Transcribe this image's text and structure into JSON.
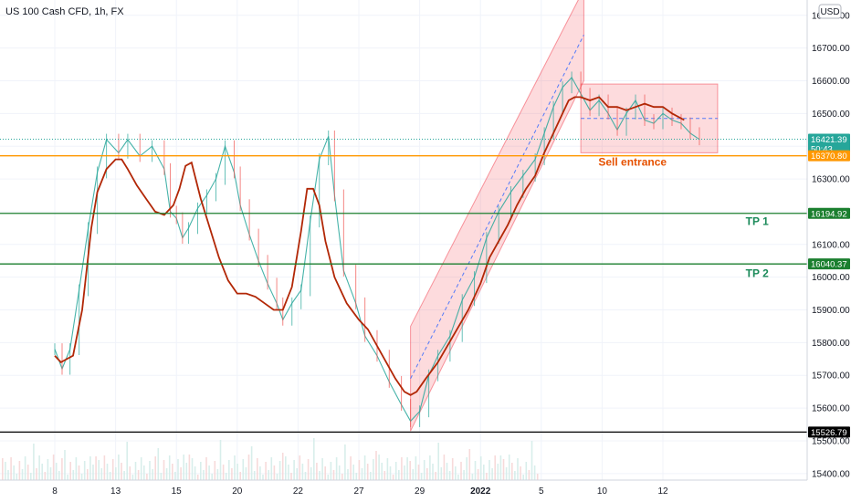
{
  "chart_data": {
    "type": "line",
    "title": "US 100 Cash CFD, 1h, FX",
    "currency": "USD",
    "x_ticks": [
      "8",
      "13",
      "15",
      "20",
      "22",
      "27",
      "29",
      "2022",
      "5",
      "10",
      "12"
    ],
    "y_ticks": [
      15400,
      15500,
      15600,
      15700,
      15800,
      15900,
      16000,
      16100,
      16200,
      16300,
      16400,
      16500,
      16600,
      16700,
      16800
    ],
    "ylim": [
      15380,
      16830
    ],
    "series": [
      {
        "kind": "price",
        "color": "#26a69a",
        "points": [
          [
            0.0,
            15780
          ],
          [
            0.12,
            15720
          ],
          [
            0.25,
            15780
          ],
          [
            0.4,
            15960
          ],
          [
            0.55,
            16150
          ],
          [
            0.7,
            16320
          ],
          [
            0.85,
            16420
          ],
          [
            1.05,
            16380
          ],
          [
            1.2,
            16420
          ],
          [
            1.4,
            16370
          ],
          [
            1.6,
            16400
          ],
          [
            1.8,
            16330
          ],
          [
            1.9,
            16200
          ],
          [
            2.0,
            16180
          ],
          [
            2.1,
            16120
          ],
          [
            2.2,
            16150
          ],
          [
            2.35,
            16210
          ],
          [
            2.5,
            16250
          ],
          [
            2.65,
            16300
          ],
          [
            2.8,
            16400
          ],
          [
            2.95,
            16320
          ],
          [
            3.05,
            16220
          ],
          [
            3.2,
            16130
          ],
          [
            3.35,
            16050
          ],
          [
            3.5,
            15980
          ],
          [
            3.65,
            15920
          ],
          [
            3.75,
            15870
          ],
          [
            3.9,
            15920
          ],
          [
            4.05,
            15960
          ],
          [
            4.2,
            16170
          ],
          [
            4.35,
            16360
          ],
          [
            4.5,
            16430
          ],
          [
            4.6,
            16250
          ],
          [
            4.75,
            16020
          ],
          [
            4.95,
            15920
          ],
          [
            5.1,
            15820
          ],
          [
            5.3,
            15760
          ],
          [
            5.5,
            15680
          ],
          [
            5.7,
            15610
          ],
          [
            5.85,
            15560
          ],
          [
            6.0,
            15590
          ],
          [
            6.15,
            15700
          ],
          [
            6.3,
            15760
          ],
          [
            6.5,
            15820
          ],
          [
            6.7,
            15930
          ],
          [
            6.9,
            16000
          ],
          [
            7.1,
            16120
          ],
          [
            7.3,
            16200
          ],
          [
            7.5,
            16260
          ],
          [
            7.7,
            16310
          ],
          [
            7.9,
            16360
          ],
          [
            8.05,
            16440
          ],
          [
            8.2,
            16520
          ],
          [
            8.35,
            16580
          ],
          [
            8.5,
            16610
          ],
          [
            8.65,
            16560
          ],
          [
            8.8,
            16510
          ],
          [
            8.95,
            16540
          ],
          [
            9.1,
            16500
          ],
          [
            9.25,
            16450
          ],
          [
            9.4,
            16500
          ],
          [
            9.55,
            16540
          ],
          [
            9.7,
            16480
          ],
          [
            9.85,
            16470
          ],
          [
            10.0,
            16500
          ],
          [
            10.15,
            16480
          ],
          [
            10.3,
            16470
          ],
          [
            10.45,
            16440
          ],
          [
            10.6,
            16421
          ]
        ]
      },
      {
        "kind": "moving-average",
        "color": "#b22706",
        "points": [
          [
            0.0,
            15760
          ],
          [
            0.1,
            15740
          ],
          [
            0.3,
            15760
          ],
          [
            0.45,
            15900
          ],
          [
            0.6,
            16150
          ],
          [
            0.7,
            16260
          ],
          [
            0.85,
            16330
          ],
          [
            1.0,
            16360
          ],
          [
            1.1,
            16360
          ],
          [
            1.2,
            16330
          ],
          [
            1.35,
            16280
          ],
          [
            1.5,
            16240
          ],
          [
            1.65,
            16200
          ],
          [
            1.8,
            16190
          ],
          [
            1.95,
            16220
          ],
          [
            2.05,
            16270
          ],
          [
            2.15,
            16340
          ],
          [
            2.25,
            16350
          ],
          [
            2.4,
            16240
          ],
          [
            2.55,
            16150
          ],
          [
            2.7,
            16060
          ],
          [
            2.85,
            15990
          ],
          [
            3.0,
            15950
          ],
          [
            3.15,
            15950
          ],
          [
            3.3,
            15940
          ],
          [
            3.45,
            15920
          ],
          [
            3.6,
            15900
          ],
          [
            3.75,
            15900
          ],
          [
            3.9,
            15970
          ],
          [
            4.05,
            16140
          ],
          [
            4.15,
            16270
          ],
          [
            4.25,
            16270
          ],
          [
            4.35,
            16220
          ],
          [
            4.45,
            16110
          ],
          [
            4.6,
            16000
          ],
          [
            4.8,
            15920
          ],
          [
            5.0,
            15870
          ],
          [
            5.15,
            15840
          ],
          [
            5.3,
            15790
          ],
          [
            5.45,
            15740
          ],
          [
            5.6,
            15690
          ],
          [
            5.75,
            15650
          ],
          [
            5.85,
            15640
          ],
          [
            5.95,
            15650
          ],
          [
            6.1,
            15690
          ],
          [
            6.3,
            15740
          ],
          [
            6.55,
            15820
          ],
          [
            6.8,
            15900
          ],
          [
            7.0,
            15980
          ],
          [
            7.15,
            16060
          ],
          [
            7.3,
            16110
          ],
          [
            7.45,
            16160
          ],
          [
            7.6,
            16220
          ],
          [
            7.75,
            16270
          ],
          [
            7.9,
            16310
          ],
          [
            8.05,
            16380
          ],
          [
            8.2,
            16440
          ],
          [
            8.35,
            16500
          ],
          [
            8.45,
            16540
          ],
          [
            8.55,
            16550
          ],
          [
            8.65,
            16550
          ],
          [
            8.8,
            16540
          ],
          [
            8.95,
            16550
          ],
          [
            9.1,
            16520
          ],
          [
            9.25,
            16520
          ],
          [
            9.4,
            16510
          ],
          [
            9.55,
            16520
          ],
          [
            9.7,
            16530
          ],
          [
            9.85,
            16520
          ],
          [
            10.0,
            16520
          ],
          [
            10.15,
            16500
          ],
          [
            10.35,
            16480
          ]
        ]
      }
    ],
    "horizontal_lines": [
      {
        "value": 16421.39,
        "color": "#26a69a",
        "style": "dotted"
      },
      {
        "value": 16370.8,
        "color": "#ff9800",
        "style": "solid"
      },
      {
        "value": 16194.92,
        "color": "#1b7f2f",
        "style": "solid"
      },
      {
        "value": 16040.37,
        "color": "#1b7f2f",
        "style": "solid"
      },
      {
        "value": 15526.79,
        "color": "#000000",
        "style": "solid"
      }
    ],
    "price_labels": [
      {
        "value": 16421.39,
        "text": "16421.39",
        "subtext": "50:43",
        "color": "#26a69a"
      },
      {
        "value": 16370.8,
        "text": "16370.80",
        "color": "#ff9800"
      },
      {
        "value": 16194.92,
        "text": "16194.92",
        "color": "#1b7f2f"
      },
      {
        "value": 16040.37,
        "text": "16040.37",
        "color": "#1b7f2f"
      },
      {
        "value": 15526.79,
        "text": "15526.79",
        "color": "#000000"
      }
    ],
    "channel": {
      "color": "#f23645",
      "lower": [
        [
          5.85,
          15530
        ],
        [
          8.7,
          16600
        ]
      ],
      "upper": [
        [
          5.85,
          15850
        ],
        [
          8.7,
          16880
        ]
      ],
      "mid": [
        [
          5.85,
          15690
        ],
        [
          8.7,
          16740
        ]
      ]
    },
    "range_box": {
      "color": "#f23645",
      "x": [
        8.65,
        10.9
      ],
      "y": [
        16380,
        16590
      ],
      "mid": 16485
    },
    "annotations": [
      {
        "text": "Sell entrance",
        "x": 9.5,
        "y": 16340,
        "color": "#e65100"
      },
      {
        "text": "TP 1",
        "x": 11.55,
        "y": 16160,
        "color": "#1b8a5a"
      },
      {
        "text": "TP 2",
        "x": 11.55,
        "y": 16000,
        "color": "#1b8a5a"
      }
    ]
  }
}
